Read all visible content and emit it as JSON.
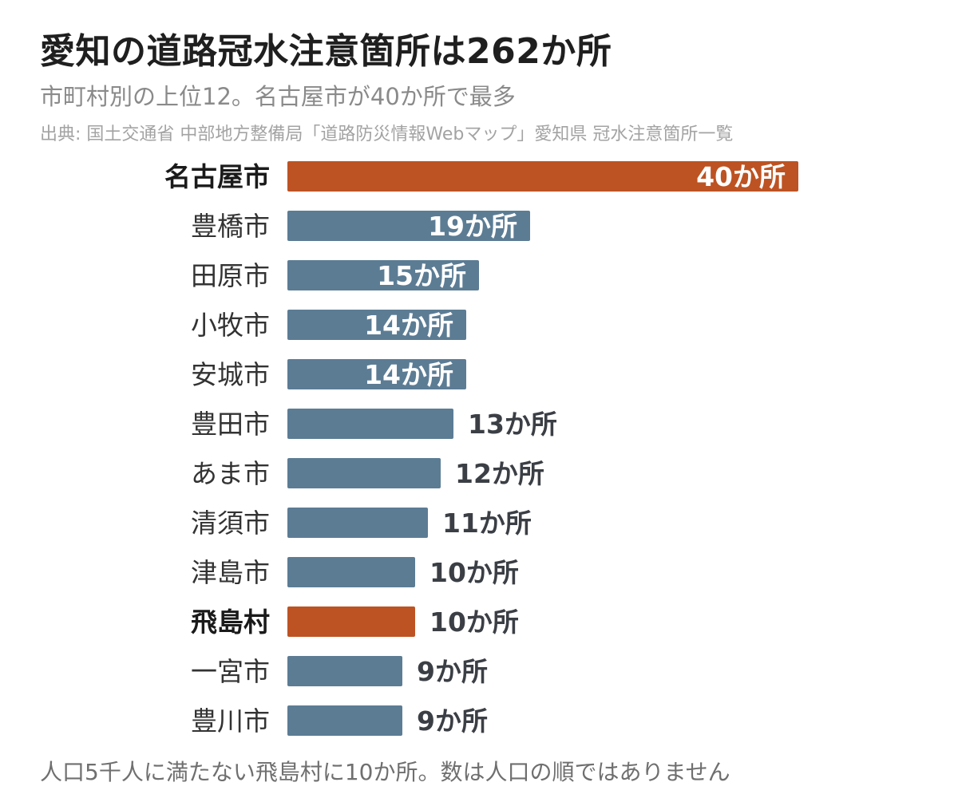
{
  "title": "愛知の道路冠水注意箇所は262か所",
  "subtitle": "市町村別の上位12。名古屋市が40か所で最多",
  "source": "出典: 国土交通省 中部地方整備局「道路防災情報Webマップ」愛知県 冠水注意箇所一覧",
  "note": "人口5千人に満たない飛島村に10か所。数は人口の順ではありません",
  "chart_data": {
    "type": "bar",
    "orientation": "horizontal",
    "title": "愛知の道路冠水注意箇所は262か所",
    "subtitle": "市町村別の上位12。名古屋市が40か所で最多",
    "categories": [
      "名古屋市",
      "豊橋市",
      "田原市",
      "小牧市",
      "安城市",
      "豊田市",
      "あま市",
      "清須市",
      "津島市",
      "飛島村",
      "一宮市",
      "豊川市"
    ],
    "values": [
      40,
      19,
      15,
      14,
      14,
      13,
      12,
      11,
      10,
      10,
      9,
      9
    ],
    "labels": [
      "40か所",
      "19か所",
      "15か所",
      "14か所",
      "14か所",
      "13か所",
      "12か所",
      "11か所",
      "10か所",
      "10か所",
      "9か所",
      "9か所"
    ],
    "highlighted": [
      "名古屋市",
      "飛島村"
    ],
    "xlim": [
      0,
      40
    ],
    "grid": false,
    "colors": {
      "highlight": "#bd5322",
      "normal": "#5c7c94",
      "label_inside": "#ffffff",
      "label_outside": "#3b3f45",
      "category": "#333333",
      "category_highlight": "#1a1a1a"
    }
  }
}
